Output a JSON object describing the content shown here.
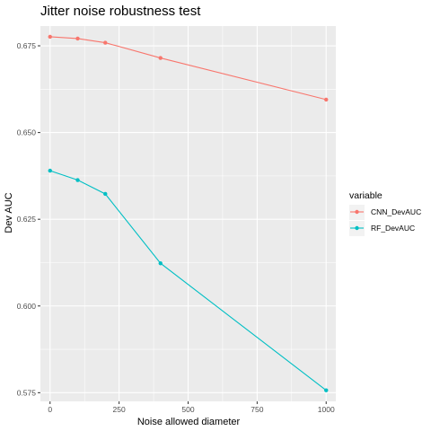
{
  "chart_data": {
    "type": "line",
    "title": "Jitter noise robustness test",
    "xlabel": "Noise allowed diameter",
    "ylabel": "Dev AUC",
    "xlim": [
      -35,
      1035
    ],
    "ylim": [
      0.5725,
      0.6807
    ],
    "x_ticks": [
      0,
      250,
      500,
      750,
      1000
    ],
    "x_tick_labels": [
      "0",
      "250",
      "500",
      "750",
      "1000"
    ],
    "y_ticks": [
      0.575,
      0.6,
      0.625,
      0.65,
      0.675
    ],
    "y_tick_labels": [
      "0.575",
      "0.600",
      "0.625",
      "0.650",
      "0.675"
    ],
    "grid": true,
    "legend": {
      "title": "variable",
      "position": "right"
    },
    "x": [
      0,
      100,
      200,
      400,
      1000
    ],
    "series": [
      {
        "name": "CNN_DevAUC",
        "color": "#F8766D",
        "values": [
          0.6776,
          0.6771,
          0.6759,
          0.6715,
          0.6595
        ]
      },
      {
        "name": "RF_DevAUC",
        "color": "#00BFC4",
        "values": [
          0.639,
          0.6363,
          0.6323,
          0.6123,
          0.5757
        ]
      }
    ]
  }
}
